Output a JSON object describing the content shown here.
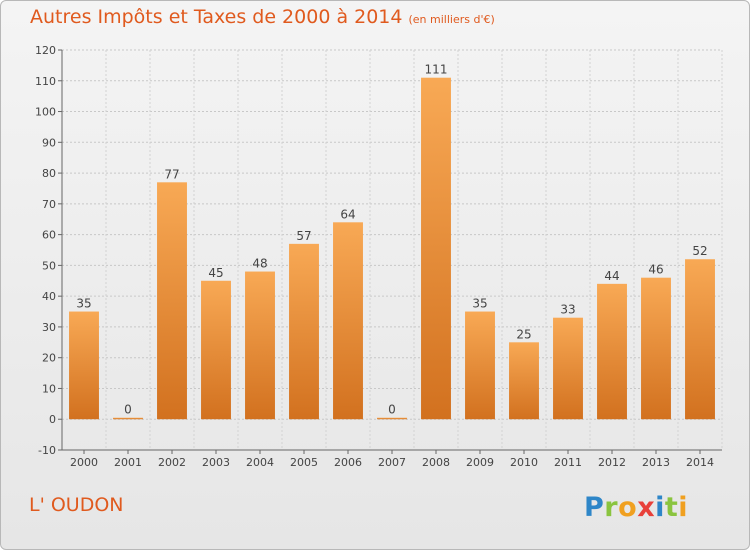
{
  "title": "Autres Impôts et Taxes de 2000 à 2014",
  "subtitle": "(en milliers d'€)",
  "commune": "L' OUDON",
  "logo_text": "Proxiti",
  "colors": {
    "bar_light": "#f7a552",
    "bar_dark": "#d47320",
    "title": "#e05a1e"
  },
  "chart_data": {
    "type": "bar",
    "title": "Autres Impôts et Taxes de 2000 à 2014",
    "subtitle": "(en milliers d'€)",
    "categories": [
      "2000",
      "2001",
      "2002",
      "2003",
      "2004",
      "2005",
      "2006",
      "2007",
      "2008",
      "2009",
      "2010",
      "2011",
      "2012",
      "2013",
      "2014"
    ],
    "values": [
      35,
      0,
      77,
      45,
      48,
      57,
      64,
      0,
      111,
      35,
      25,
      33,
      44,
      46,
      52
    ],
    "ylim": [
      -10,
      120
    ],
    "yticks": [
      -10,
      0,
      10,
      20,
      30,
      40,
      50,
      60,
      70,
      80,
      90,
      100,
      110,
      120
    ],
    "grid": true,
    "xlabel": "",
    "ylabel": ""
  }
}
